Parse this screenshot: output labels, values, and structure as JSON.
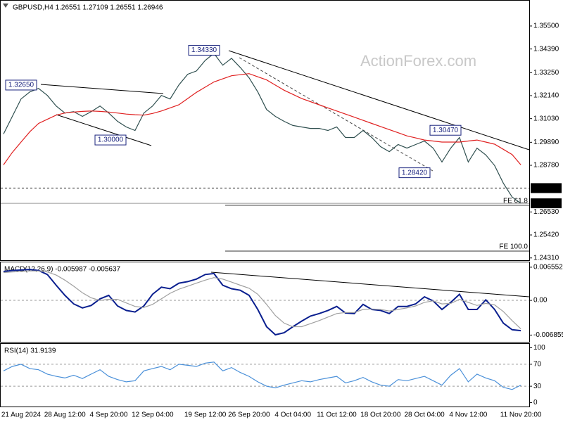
{
  "chart_data": [
    {
      "type": "line",
      "title": "GBPUSD,H4  1.26551 1.27109 1.26551 1.26946",
      "watermark": "ActionForex.com",
      "categories": [
        null,
        null,
        "21 Aug 2024",
        null,
        null,
        null,
        null,
        "28 Aug 12:00",
        null,
        null,
        null,
        null,
        "4 Sep 20:00",
        null,
        null,
        null,
        null,
        "12 Sep 04:00",
        null,
        null,
        null,
        null,
        null,
        "19 Sep 12:00",
        null,
        null,
        null,
        null,
        "26 Sep 20:00",
        null,
        null,
        null,
        null,
        "4 Oct 04:00",
        null,
        null,
        null,
        null,
        "11 Oct 12:00",
        null,
        null,
        null,
        null,
        "18 Oct 20:00",
        null,
        null,
        null,
        null,
        "28 Oct 04:00",
        null,
        null,
        null,
        null,
        "4 Nov 12:00",
        null,
        null,
        null,
        null,
        null,
        "11 Nov 20:00"
      ],
      "series": [
        {
          "color": "#2f4f4f",
          "values": [
            1.3029,
            1.3114,
            1.3198,
            1.3232,
            1.3249,
            1.3215,
            1.3164,
            1.313,
            1.3137,
            1.3114,
            1.3137,
            1.3164,
            1.313,
            1.309,
            1.3063,
            1.3046,
            1.313,
            1.3164,
            1.3215,
            1.3198,
            1.3266,
            1.3317,
            1.3333,
            1.3384,
            1.3418,
            1.3361,
            1.3394,
            1.335,
            1.33,
            1.3232,
            1.3147,
            1.3114,
            1.309,
            1.307,
            1.3063,
            1.3056,
            1.3056,
            1.3046,
            1.3063,
            1.3012,
            1.3012,
            1.3046,
            1.3012,
            1.2968,
            1.2944,
            1.2978,
            1.2961,
            1.2978,
            1.2995,
            1.2961,
            1.2894,
            1.2961,
            1.3012,
            1.2894,
            1.2961,
            1.2928,
            1.2877,
            1.2792,
            1.2725,
            1.26946
          ]
        },
        {
          "color": "#e02020",
          "values": [
            1.288,
            1.294,
            1.299,
            1.304,
            1.308,
            1.31,
            1.312,
            1.313,
            1.3135,
            1.3138,
            1.314,
            1.3138,
            1.3135,
            1.313,
            1.3125,
            1.3122,
            1.312,
            1.3128,
            1.314,
            1.3155,
            1.317,
            1.32,
            1.323,
            1.3255,
            1.328,
            1.3295,
            1.331,
            1.3315,
            1.332,
            1.3305,
            1.329,
            1.3265,
            1.324,
            1.322,
            1.32,
            1.3185,
            1.317,
            1.3155,
            1.314,
            1.3125,
            1.311,
            1.3095,
            1.308,
            1.3065,
            1.305,
            1.3035,
            1.302,
            1.301,
            1.3,
            1.2995,
            1.299,
            1.299,
            1.299,
            1.2995,
            1.3,
            1.299,
            1.298,
            1.2955,
            1.293,
            1.288
          ]
        }
      ],
      "ylim": [
        1.242,
        1.3672
      ],
      "yticks": [
        {
          "value": 1.355,
          "label": "1.35500"
        },
        {
          "value": 1.3439,
          "label": "1.34390"
        },
        {
          "value": 1.3325,
          "label": "1.33250"
        },
        {
          "value": 1.3214,
          "label": "1.32140"
        },
        {
          "value": 1.3103,
          "label": "1.31030"
        },
        {
          "value": 1.2989,
          "label": "1.29890"
        },
        {
          "value": 1.2878,
          "label": "1.28780"
        },
        {
          "value": 1.2653,
          "label": "1.26530"
        },
        {
          "value": 1.2542,
          "label": "1.25420"
        },
        {
          "value": 1.2431,
          "label": "1.24310"
        }
      ],
      "markers": [
        {
          "value": 1.2768,
          "label": "1.27680",
          "style": "dashed"
        },
        {
          "value": 1.26946,
          "label": "1.26946",
          "style": "solid"
        }
      ],
      "levels": [
        {
          "value": 1.2685,
          "label": "FE 61.8"
        },
        {
          "value": 1.2464,
          "label": "FE 100.0"
        }
      ],
      "annotations": [
        {
          "value": 1.3265,
          "label": "1.32650"
        },
        {
          "value": 1.3,
          "label": "1.30000"
        },
        {
          "value": 1.3433,
          "label": "1.34330"
        },
        {
          "value": 1.2842,
          "label": "1.28420"
        },
        {
          "value": 1.3047,
          "label": "1.30470"
        }
      ]
    },
    {
      "type": "line",
      "title": "MACD(12,26,9) -0.005987 -0.005637",
      "series": [
        {
          "color": "#0a1f8f",
          "values": [
            0.0057,
            0.0059,
            0.006,
            0.0061,
            0.0059,
            0.0051,
            0.003,
            0.001,
            -0.0007,
            -0.0015,
            -0.001,
            0.0003,
            0.001,
            -0.0011,
            -0.002,
            -0.0023,
            -0.0011,
            0.0012,
            0.0026,
            0.0023,
            0.0034,
            0.0037,
            0.0042,
            0.0051,
            0.0053,
            0.003,
            0.0023,
            0.002,
            0.001,
            -0.0018,
            -0.0052,
            -0.0068,
            -0.0064,
            -0.0052,
            -0.0041,
            -0.0031,
            -0.0026,
            -0.002,
            -0.0012,
            -0.0025,
            -0.0026,
            -0.0008,
            -0.0018,
            -0.002,
            -0.0026,
            -0.0012,
            -0.0012,
            -0.0007,
            0.0007,
            -0.0001,
            -0.0018,
            -0.0004,
            0.0012,
            -0.0018,
            -0.0018,
            0.0001,
            -0.0018,
            -0.0045,
            -0.0058,
            -0.005987
          ]
        },
        {
          "color": "#a0a0a0",
          "values": [
            0.0055,
            0.0056,
            0.0057,
            0.0058,
            0.0058,
            0.0056,
            0.005,
            0.004,
            0.0028,
            0.0015,
            0.0005,
            0.0,
            0.0002,
            0.0002,
            -0.0005,
            -0.0012,
            -0.0014,
            -0.0008,
            0.0003,
            0.0014,
            0.0022,
            0.0028,
            0.0034,
            0.004,
            0.0045,
            0.0042,
            0.0036,
            0.003,
            0.0024,
            0.0012,
            -0.0008,
            -0.003,
            -0.0045,
            -0.0052,
            -0.0052,
            -0.0046,
            -0.004,
            -0.0033,
            -0.0026,
            -0.0024,
            -0.0024,
            -0.0018,
            -0.0017,
            -0.0018,
            -0.0021,
            -0.0018,
            -0.0015,
            -0.0011,
            -0.0004,
            -0.0001,
            -0.0007,
            -0.0006,
            0.0002,
            -0.0004,
            -0.001,
            -0.0006,
            -0.0009,
            -0.0022,
            -0.004,
            -0.005637
          ]
        }
      ],
      "ylim": [
        -0.00819,
        0.00751
      ],
      "yticks": [
        0.006552,
        {
          "value": 0,
          "label": "0.00"
        },
        -0.006855
      ],
      "hlines": [
        0
      ]
    },
    {
      "type": "line",
      "title": "RSI(14) 31.9139",
      "series": [
        {
          "color": "#4a90d9",
          "values": [
            58,
            66,
            70,
            62,
            60,
            52,
            48,
            45,
            50,
            44,
            52,
            60,
            48,
            42,
            38,
            40,
            58,
            62,
            66,
            60,
            70,
            68,
            66,
            72,
            74,
            58,
            64,
            55,
            48,
            38,
            30,
            27,
            32,
            36,
            40,
            38,
            42,
            45,
            48,
            36,
            40,
            46,
            38,
            32,
            30,
            42,
            40,
            44,
            48,
            40,
            32,
            50,
            62,
            38,
            52,
            45,
            40,
            28,
            24,
            31.9139
          ]
        }
      ],
      "ylim": [
        -7,
        107
      ],
      "yticks": [
        100,
        70,
        30,
        0
      ],
      "hlines": [
        70,
        30
      ]
    }
  ]
}
